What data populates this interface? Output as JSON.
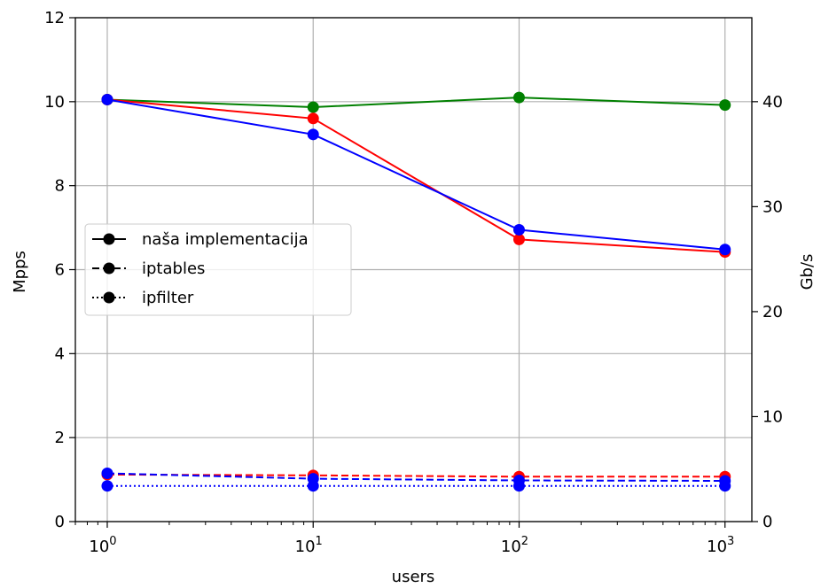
{
  "chart_data": {
    "type": "line",
    "xlabel": "users",
    "ylabel": "Mpps",
    "ylabel_right": "Gb/s",
    "x_scale": "log",
    "x_base": "10",
    "x": [
      1,
      10,
      100,
      1000
    ],
    "x_tick_exponents": [
      "0",
      "1",
      "2",
      "3"
    ],
    "xlim": [
      0.7,
      1350
    ],
    "ylim": [
      0,
      12
    ],
    "y_ticks": [
      0,
      2,
      4,
      6,
      8,
      10,
      12
    ],
    "ylim_right": [
      0,
      48
    ],
    "y_ticks_right": [
      0,
      10,
      20,
      30,
      40
    ],
    "grid": true,
    "legend_position": "center-left",
    "legend": [
      {
        "label": "naša implementacija",
        "style": "solid"
      },
      {
        "label": "iptables",
        "style": "dashed"
      },
      {
        "label": "ipfilter",
        "style": "dotted"
      }
    ],
    "series": [
      {
        "color": "#008000",
        "style": "solid",
        "axis": "left",
        "values": [
          10.05,
          9.87,
          10.1,
          9.92
        ]
      },
      {
        "color": "#ff0000",
        "style": "solid",
        "axis": "left",
        "values": [
          10.05,
          9.6,
          6.72,
          6.42
        ]
      },
      {
        "color": "#0000ff",
        "style": "solid",
        "axis": "left",
        "values": [
          10.05,
          9.22,
          6.95,
          6.48
        ]
      },
      {
        "color": "#ff0000",
        "style": "dashed",
        "axis": "left",
        "values": [
          1.12,
          1.1,
          1.07,
          1.07
        ]
      },
      {
        "color": "#0000ff",
        "style": "dashed",
        "axis": "left",
        "values": [
          1.15,
          1.02,
          0.98,
          0.97
        ]
      },
      {
        "color": "#0000ff",
        "style": "dotted",
        "axis": "left",
        "values": [
          0.85,
          0.85,
          0.85,
          0.85
        ]
      }
    ],
    "colors": {
      "grid": "#b0b0b0",
      "axis": "#000000",
      "legend_border": "#cccccc"
    }
  }
}
